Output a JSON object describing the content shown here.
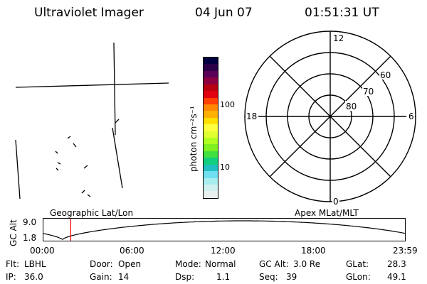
{
  "header": {
    "instrument": "Ultraviolet Imager",
    "date": "04 Jun 07",
    "time": "01:51:31 UT"
  },
  "colorbar": {
    "unit_label": "photon cm⁻²s⁻¹",
    "ticks": [
      {
        "label": "100",
        "value": 100
      },
      {
        "label": "10",
        "value": 10
      }
    ],
    "colors": [
      "#000040",
      "#2a0048",
      "#5a0058",
      "#8a0040",
      "#b80010",
      "#e00010",
      "#ff4000",
      "#ff8800",
      "#ffb000",
      "#ffe000",
      "#ffff40",
      "#e0ff30",
      "#b0ff20",
      "#80f020",
      "#40e040",
      "#10d080",
      "#20c0c0",
      "#70e0f0",
      "#a8eeee",
      "#d0f0f0",
      "#e8f0f0"
    ]
  },
  "polar_plot": {
    "mlt_labels": {
      "top": "12",
      "right": "6",
      "bottom": "0",
      "left": "18"
    },
    "lat_labels": [
      "60",
      "70",
      "80"
    ]
  },
  "timeline": {
    "left_labels": {
      "axis": "GC Alt",
      "max": "9.0",
      "min": "1.8"
    },
    "geo_label": "Geographic Lat/Lon",
    "apex_label": "Apex MLat/MLT",
    "time_ticks": [
      "00:00",
      "06:00",
      "12:00",
      "18:00",
      "23:59"
    ],
    "current_marker_hour": 1.86,
    "colors": {
      "marker": "#ff0000",
      "curve": "#000000"
    }
  },
  "info": {
    "flt_label": "Flt:",
    "flt": "LBHL",
    "ip_label": "IP:",
    "ip": "36.0",
    "door_label": "Door:",
    "door": "Open",
    "gain_label": "Gain:",
    "gain": "14",
    "mode_label": "Mode:",
    "mode": "Normal",
    "dsp_label": "Dsp:",
    "dsp": "1.1",
    "gcalt_label": "GC Alt:",
    "gcalt": "3.0 Re",
    "seq_label": "Seq:",
    "seq": "39",
    "glat_label": "GLat:",
    "glat": "28.3",
    "glon_label": "GLon:",
    "glon": "49.1"
  }
}
